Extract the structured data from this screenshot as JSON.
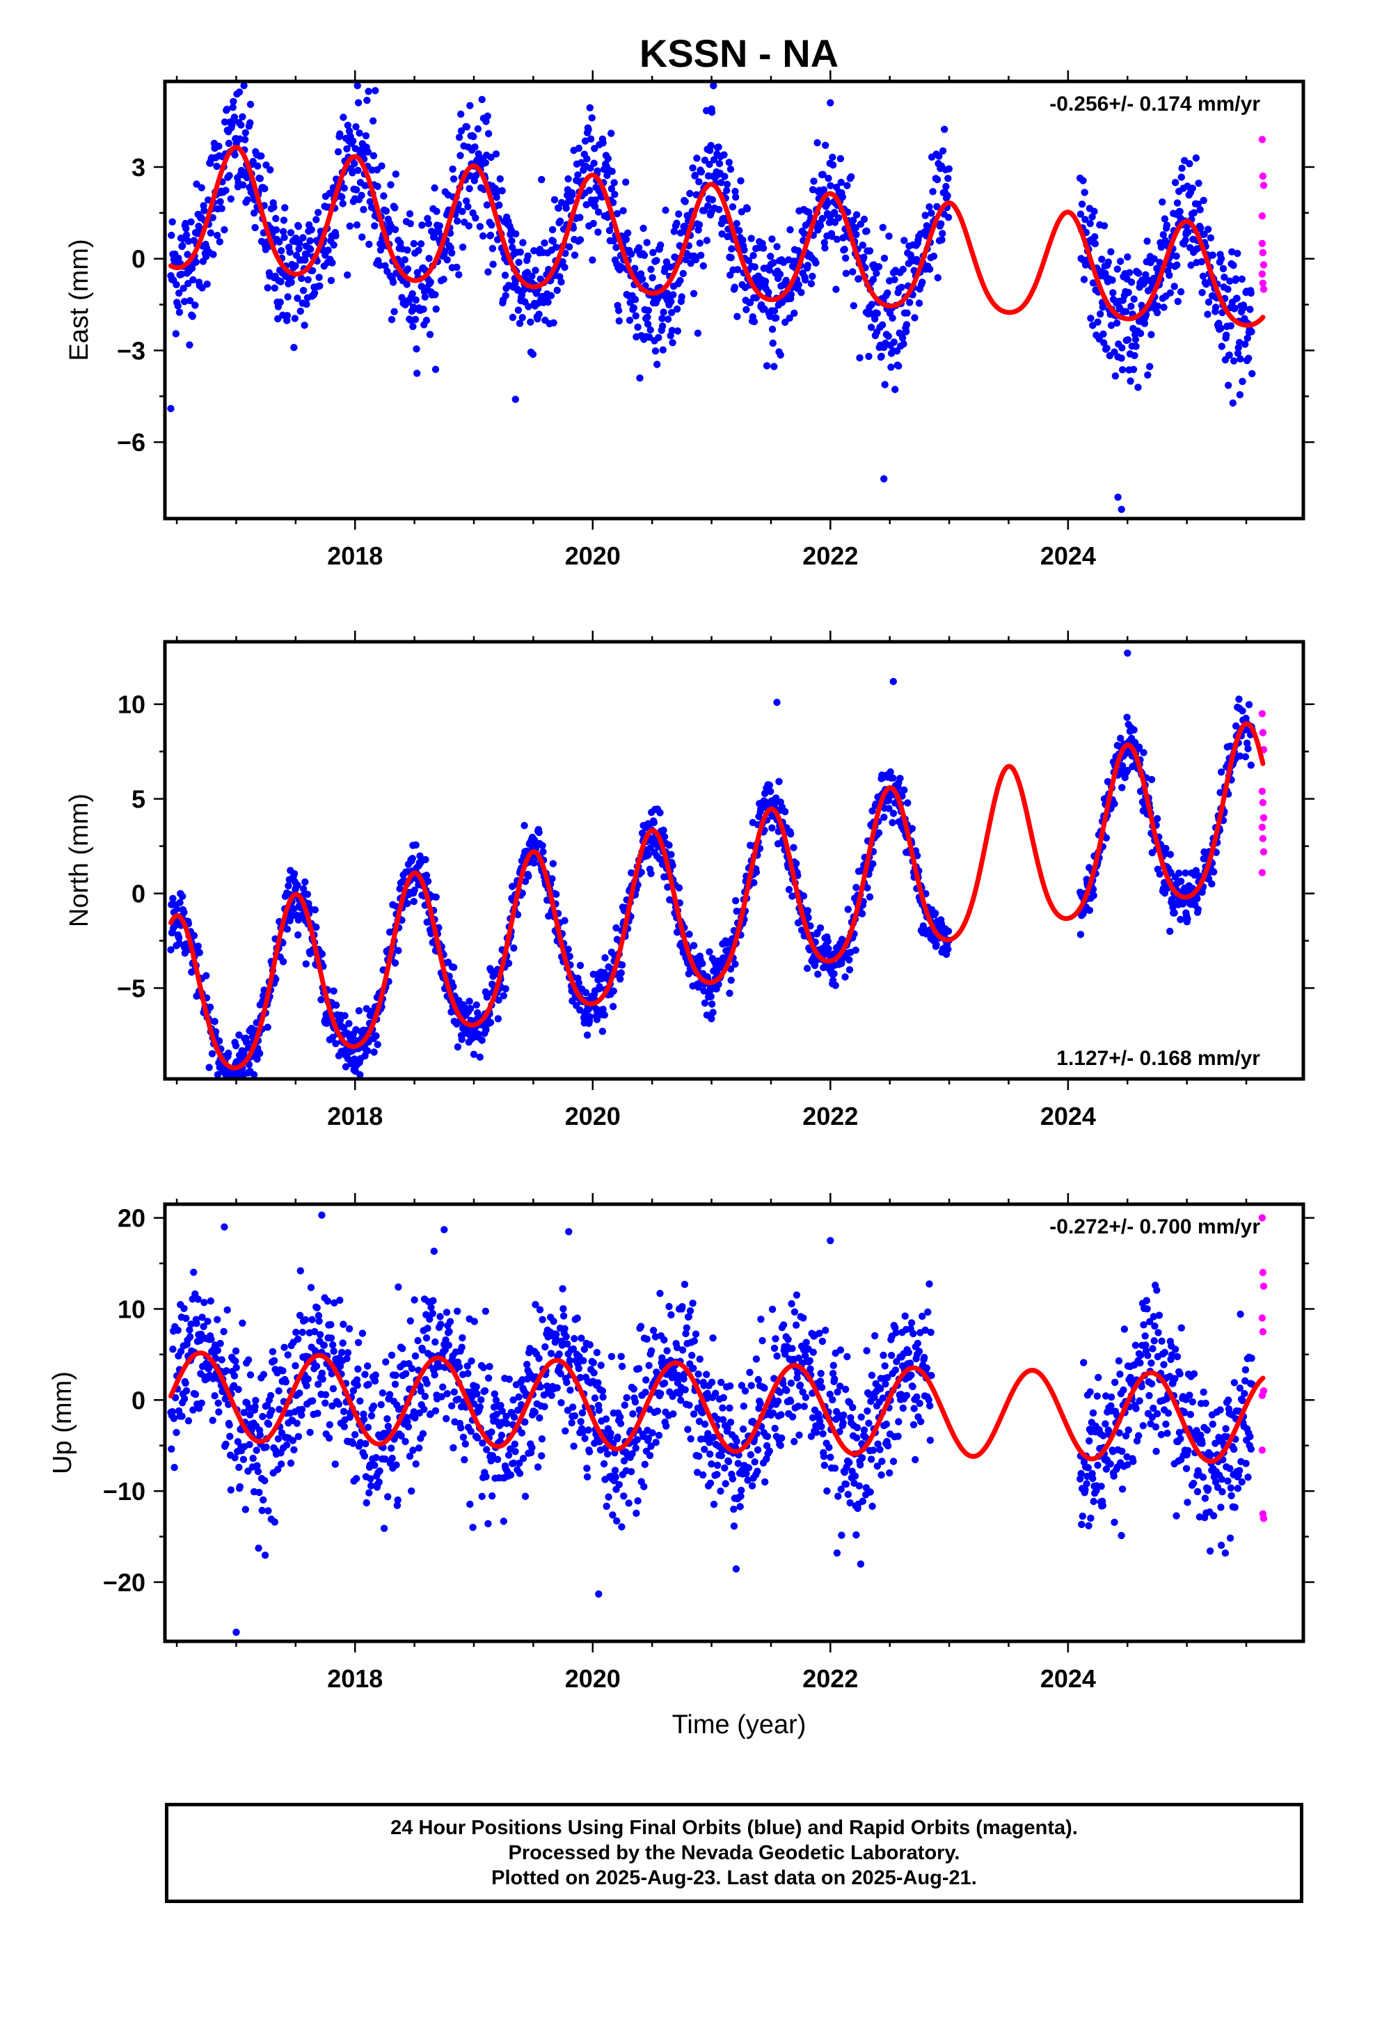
{
  "title": "KSSN - NA",
  "xlabel": "Time (year)",
  "colors": {
    "final": "#0000ff",
    "rapid": "#ff00ff",
    "model": "#ff0000"
  },
  "x_ticks": [
    2018,
    2020,
    2022,
    2024
  ],
  "footer": {
    "line1": "24 Hour Positions Using Final Orbits (blue) and Rapid Orbits (magenta).",
    "line2": "Processed by the Nevada Geodetic Laboratory.",
    "line3": "Plotted on 2025-Aug-23. Last data on 2025-Aug-21."
  },
  "chart_data": [
    {
      "type": "scatter",
      "component": "East",
      "ylabel": "East (mm)",
      "rate": "-0.256+/- 0.174 mm/yr",
      "rate_position": "top-right",
      "xlim": [
        2016.4,
        2025.98
      ],
      "ylim": [
        -8.5,
        5.8
      ],
      "yticks": [
        3,
        0,
        -3,
        -6
      ],
      "ytick_labels": [
        "3",
        "0",
        "−3",
        "−6"
      ],
      "data_start": 2016.45,
      "gap": [
        2023.0,
        2024.1
      ],
      "rapid_start": 2025.55,
      "last_data": 2025.64,
      "model": {
        "offset": 0.35,
        "trend": -0.256,
        "ref": 2021.0,
        "amp_start": 2.05,
        "amp_end": 1.6,
        "phase_peak": 0.0,
        "semi_amp": 0.25
      },
      "noise_sd": 1.05,
      "extremes": [
        {
          "x": 2018.17,
          "y": 5.5
        },
        {
          "x": 2022.0,
          "y": 5.1
        },
        {
          "x": 2021.0,
          "y": 4.9
        },
        {
          "x": 2024.45,
          "y": -8.2
        },
        {
          "x": 2024.42,
          "y": -7.8
        },
        {
          "x": 2022.45,
          "y": -7.2
        },
        {
          "x": 2016.45,
          "y": -4.9
        },
        {
          "x": 2019.35,
          "y": -4.6
        }
      ],
      "rapid_points": [
        3.9,
        2.7,
        2.4,
        1.4,
        0.2,
        -0.2,
        -0.5,
        -0.8,
        -1.0,
        0.5
      ]
    },
    {
      "type": "scatter",
      "component": "North",
      "ylabel": "North (mm)",
      "rate": "1.127+/- 0.168 mm/yr",
      "rate_position": "bottom-right",
      "xlim": [
        2016.4,
        2025.98
      ],
      "ylim": [
        -9.8,
        13.3
      ],
      "yticks": [
        10,
        5,
        0,
        -5
      ],
      "ytick_labels": [
        "10",
        "5",
        "0",
        "−5"
      ],
      "data_start": 2016.45,
      "gap": [
        2023.0,
        2024.1
      ],
      "rapid_start": 2025.55,
      "last_data": 2025.64,
      "model": {
        "offset": -1.0,
        "trend": 1.127,
        "ref": 2021.0,
        "amp_start": 4.3,
        "amp_end": 4.3,
        "phase_peak": 0.5,
        "semi_amp": 0.6
      },
      "noise_sd": 0.75,
      "extremes": [
        {
          "x": 2024.5,
          "y": 12.7
        },
        {
          "x": 2021.55,
          "y": 10.1
        },
        {
          "x": 2022.53,
          "y": 11.2
        },
        {
          "x": 2017.0,
          "y": -9.2
        },
        {
          "x": 2018.0,
          "y": -9.0
        },
        {
          "x": 2019.0,
          "y": -8.5
        }
      ],
      "rapid_points": [
        9.5,
        8.5,
        7.6,
        5.4,
        4.8,
        4.0,
        3.5,
        2.9,
        2.2,
        1.1
      ]
    },
    {
      "type": "scatter",
      "component": "Up",
      "ylabel": "Up (mm)",
      "rate": "-0.272+/- 0.700 mm/yr",
      "rate_position": "top-right",
      "xlim": [
        2016.4,
        2025.98
      ],
      "ylim": [
        -26.5,
        21.5
      ],
      "yticks": [
        20,
        10,
        0,
        -10,
        -20
      ],
      "ytick_labels": [
        "20",
        "10",
        "0",
        "−10",
        "−20"
      ],
      "data_start": 2016.45,
      "gap": [
        2022.85,
        2024.1
      ],
      "rapid_start": 2025.55,
      "last_data": 2025.64,
      "model": {
        "offset": -0.8,
        "trend": -0.272,
        "ref": 2021.0,
        "amp_start": 4.8,
        "amp_end": 4.8,
        "phase_peak": 0.7,
        "semi_amp": 0.0
      },
      "noise_sd": 4.2,
      "extremes": [
        {
          "x": 2017.0,
          "y": -25.5
        },
        {
          "x": 2017.72,
          "y": 20.3
        },
        {
          "x": 2020.05,
          "y": -21.3
        },
        {
          "x": 2016.9,
          "y": 19.0
        },
        {
          "x": 2018.75,
          "y": 18.7
        },
        {
          "x": 2022.0,
          "y": 17.5
        }
      ],
      "rapid_points": [
        20.0,
        14.0,
        12.5,
        9.0,
        7.5,
        1.0,
        -5.5,
        -12.5,
        -13.0,
        0.5
      ]
    }
  ]
}
